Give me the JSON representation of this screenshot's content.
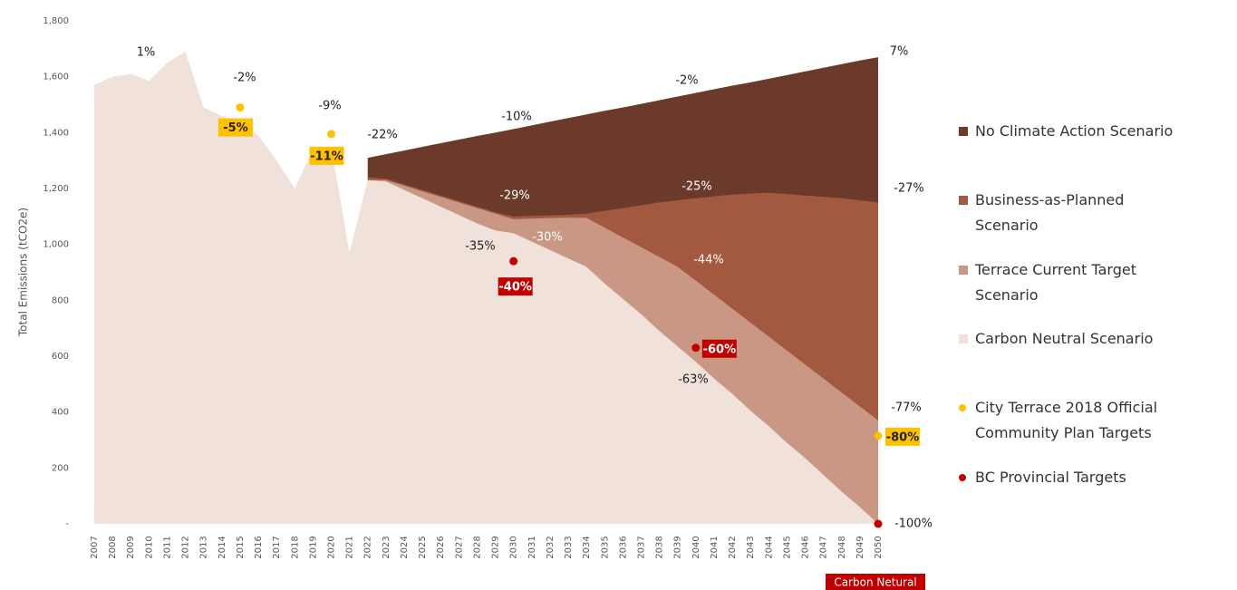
{
  "chart_data": {
    "type": "area",
    "y_label": "Total Emissions (tCO2e)",
    "categories": [
      "2007",
      "2008",
      "2009",
      "2010",
      "2011",
      "2012",
      "2013",
      "2014",
      "2015",
      "2016",
      "2017",
      "2018",
      "2019",
      "2020",
      "2021",
      "2022",
      "2023",
      "2024",
      "2025",
      "2026",
      "2027",
      "2028",
      "2029",
      "2030",
      "2031",
      "2032",
      "2033",
      "2034",
      "2035",
      "2036",
      "2037",
      "2038",
      "2039",
      "2040",
      "2041",
      "2042",
      "2043",
      "2044",
      "2045",
      "2046",
      "2047",
      "2048",
      "2049",
      "2050"
    ],
    "ylim": [
      0,
      1800
    ],
    "yticks": [
      {
        "value": 0,
        "label": "-"
      },
      200,
      400,
      600,
      800,
      {
        "value": 1000,
        "label": "1,000"
      },
      {
        "value": 1200,
        "label": "1,200"
      },
      {
        "value": 1400,
        "label": "1,400"
      },
      {
        "value": 1600,
        "label": "1,600"
      },
      {
        "value": 1800,
        "label": "1,800"
      }
    ],
    "grid": false,
    "series": [
      {
        "name": "No Climate Action Scenario",
        "color": "#6b3a2a",
        "values": [
          null,
          null,
          null,
          null,
          null,
          null,
          null,
          null,
          null,
          null,
          null,
          null,
          null,
          null,
          null,
          1310,
          1323,
          1336,
          1349,
          1362,
          1375,
          1388,
          1400,
          1413,
          1426,
          1439,
          1452,
          1465,
          1478,
          1490,
          1503,
          1516,
          1529,
          1542,
          1555,
          1568,
          1580,
          1593,
          1606,
          1619,
          1632,
          1645,
          1658,
          1670
        ]
      },
      {
        "name": "Business-as-Planned Scenario",
        "color": "#a3593f",
        "values": [
          null,
          null,
          null,
          null,
          null,
          null,
          null,
          null,
          null,
          null,
          null,
          null,
          null,
          null,
          null,
          1240,
          1235,
          1215,
          1195,
          1175,
          1155,
          1135,
          1115,
          1100,
          1102,
          1104,
          1106,
          1110,
          1120,
          1130,
          1140,
          1150,
          1158,
          1165,
          1172,
          1178,
          1182,
          1185,
          1180,
          1175,
          1170,
          1165,
          1158,
          1150
        ]
      },
      {
        "name": "Terrace Current Target Scenario",
        "color": "#c99784",
        "values": [
          null,
          null,
          null,
          null,
          null,
          null,
          null,
          null,
          null,
          null,
          null,
          null,
          null,
          null,
          null,
          1230,
          1230,
          1210,
          1190,
          1170,
          1150,
          1130,
          1110,
          1090,
          1092,
          1094,
          1096,
          1095,
          1060,
          1025,
          990,
          955,
          920,
          870,
          820,
          770,
          720,
          670,
          620,
          570,
          520,
          470,
          420,
          370
        ]
      },
      {
        "name": "Carbon Neutral Scenario",
        "color": "#f0e1da",
        "values": [
          1570,
          1600,
          1610,
          1585,
          1650,
          1690,
          1490,
          1460,
          1430,
          1390,
          1300,
          1200,
          1340,
          1350,
          970,
          1230,
          1225,
          1195,
          1165,
          1135,
          1105,
          1075,
          1050,
          1040,
          1010,
          980,
          950,
          920,
          860,
          805,
          750,
          690,
          635,
          580,
          520,
          465,
          405,
          350,
          290,
          235,
          175,
          115,
          60,
          0
        ]
      }
    ],
    "targets": [
      {
        "name": "City Terrace 2018 Official Community Plan Targets",
        "color": "#ffc000",
        "x": [
          "2015",
          "2020",
          "2050"
        ],
        "values": [
          1490,
          1395,
          315
        ],
        "labels": [
          "-5%",
          "-11%",
          "-80%"
        ]
      },
      {
        "name": "BC Provincial Targets",
        "color": "#c00000",
        "x": [
          "2030",
          "2040",
          "2050"
        ],
        "values": [
          940,
          630,
          0
        ],
        "labels": [
          "-40%",
          "-60%",
          null
        ]
      }
    ],
    "annotations": [
      "1%",
      "-2%",
      "-9%",
      "-22%",
      "-10%",
      "-2%",
      "7%",
      "-29%",
      "-25%",
      "-27%",
      "-30%",
      "-35%",
      "-44%",
      "-63%",
      "-77%",
      "-100%"
    ],
    "footnote": "Carbon Netural"
  }
}
